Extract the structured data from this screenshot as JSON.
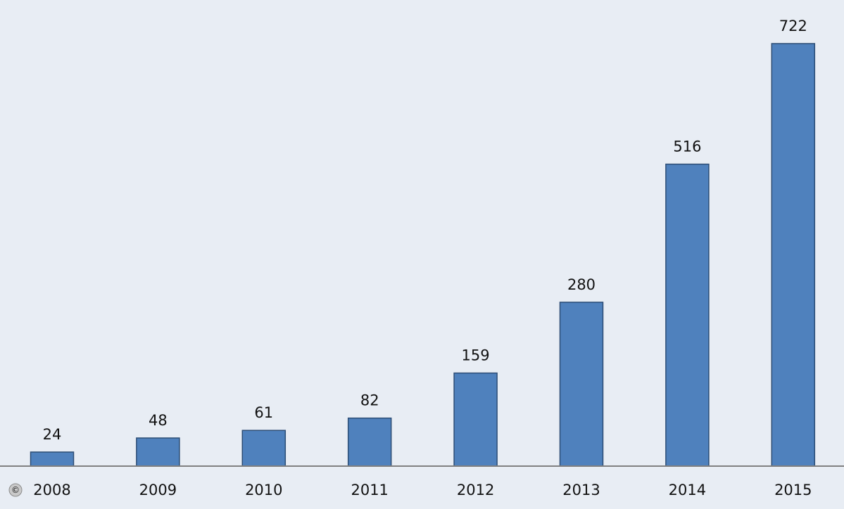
{
  "chart_data": {
    "type": "bar",
    "title": "",
    "xlabel": "",
    "ylabel": "",
    "categories": [
      "2008",
      "2009",
      "2010",
      "2011",
      "2012",
      "2013",
      "2014",
      "2015"
    ],
    "values": [
      24,
      48,
      61,
      82,
      159,
      280,
      516,
      722
    ],
    "ylim": [
      0,
      722
    ],
    "grid": false,
    "legend": "none",
    "colors": {
      "bar_fill": "#4f81bd",
      "bar_stroke": "#2c4d75",
      "background": "#e8edf4",
      "axis": "#808080"
    }
  },
  "watermark": {
    "glyph": "©",
    "icon": "copyright-icon"
  }
}
